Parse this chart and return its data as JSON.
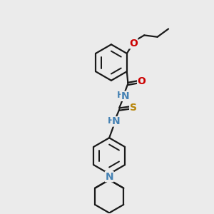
{
  "bg": "#ebebeb",
  "bc": "#1a1a1a",
  "N_color": "#4682B4",
  "O_color": "#CC0000",
  "S_color": "#B8860B",
  "H_color": "#4682B4",
  "lw": 1.6,
  "fs": 9,
  "figsize": [
    3.0,
    3.0
  ],
  "dpi": 100,
  "xlim": [
    -0.5,
    5.5
  ],
  "ylim": [
    -0.3,
    9.7
  ]
}
